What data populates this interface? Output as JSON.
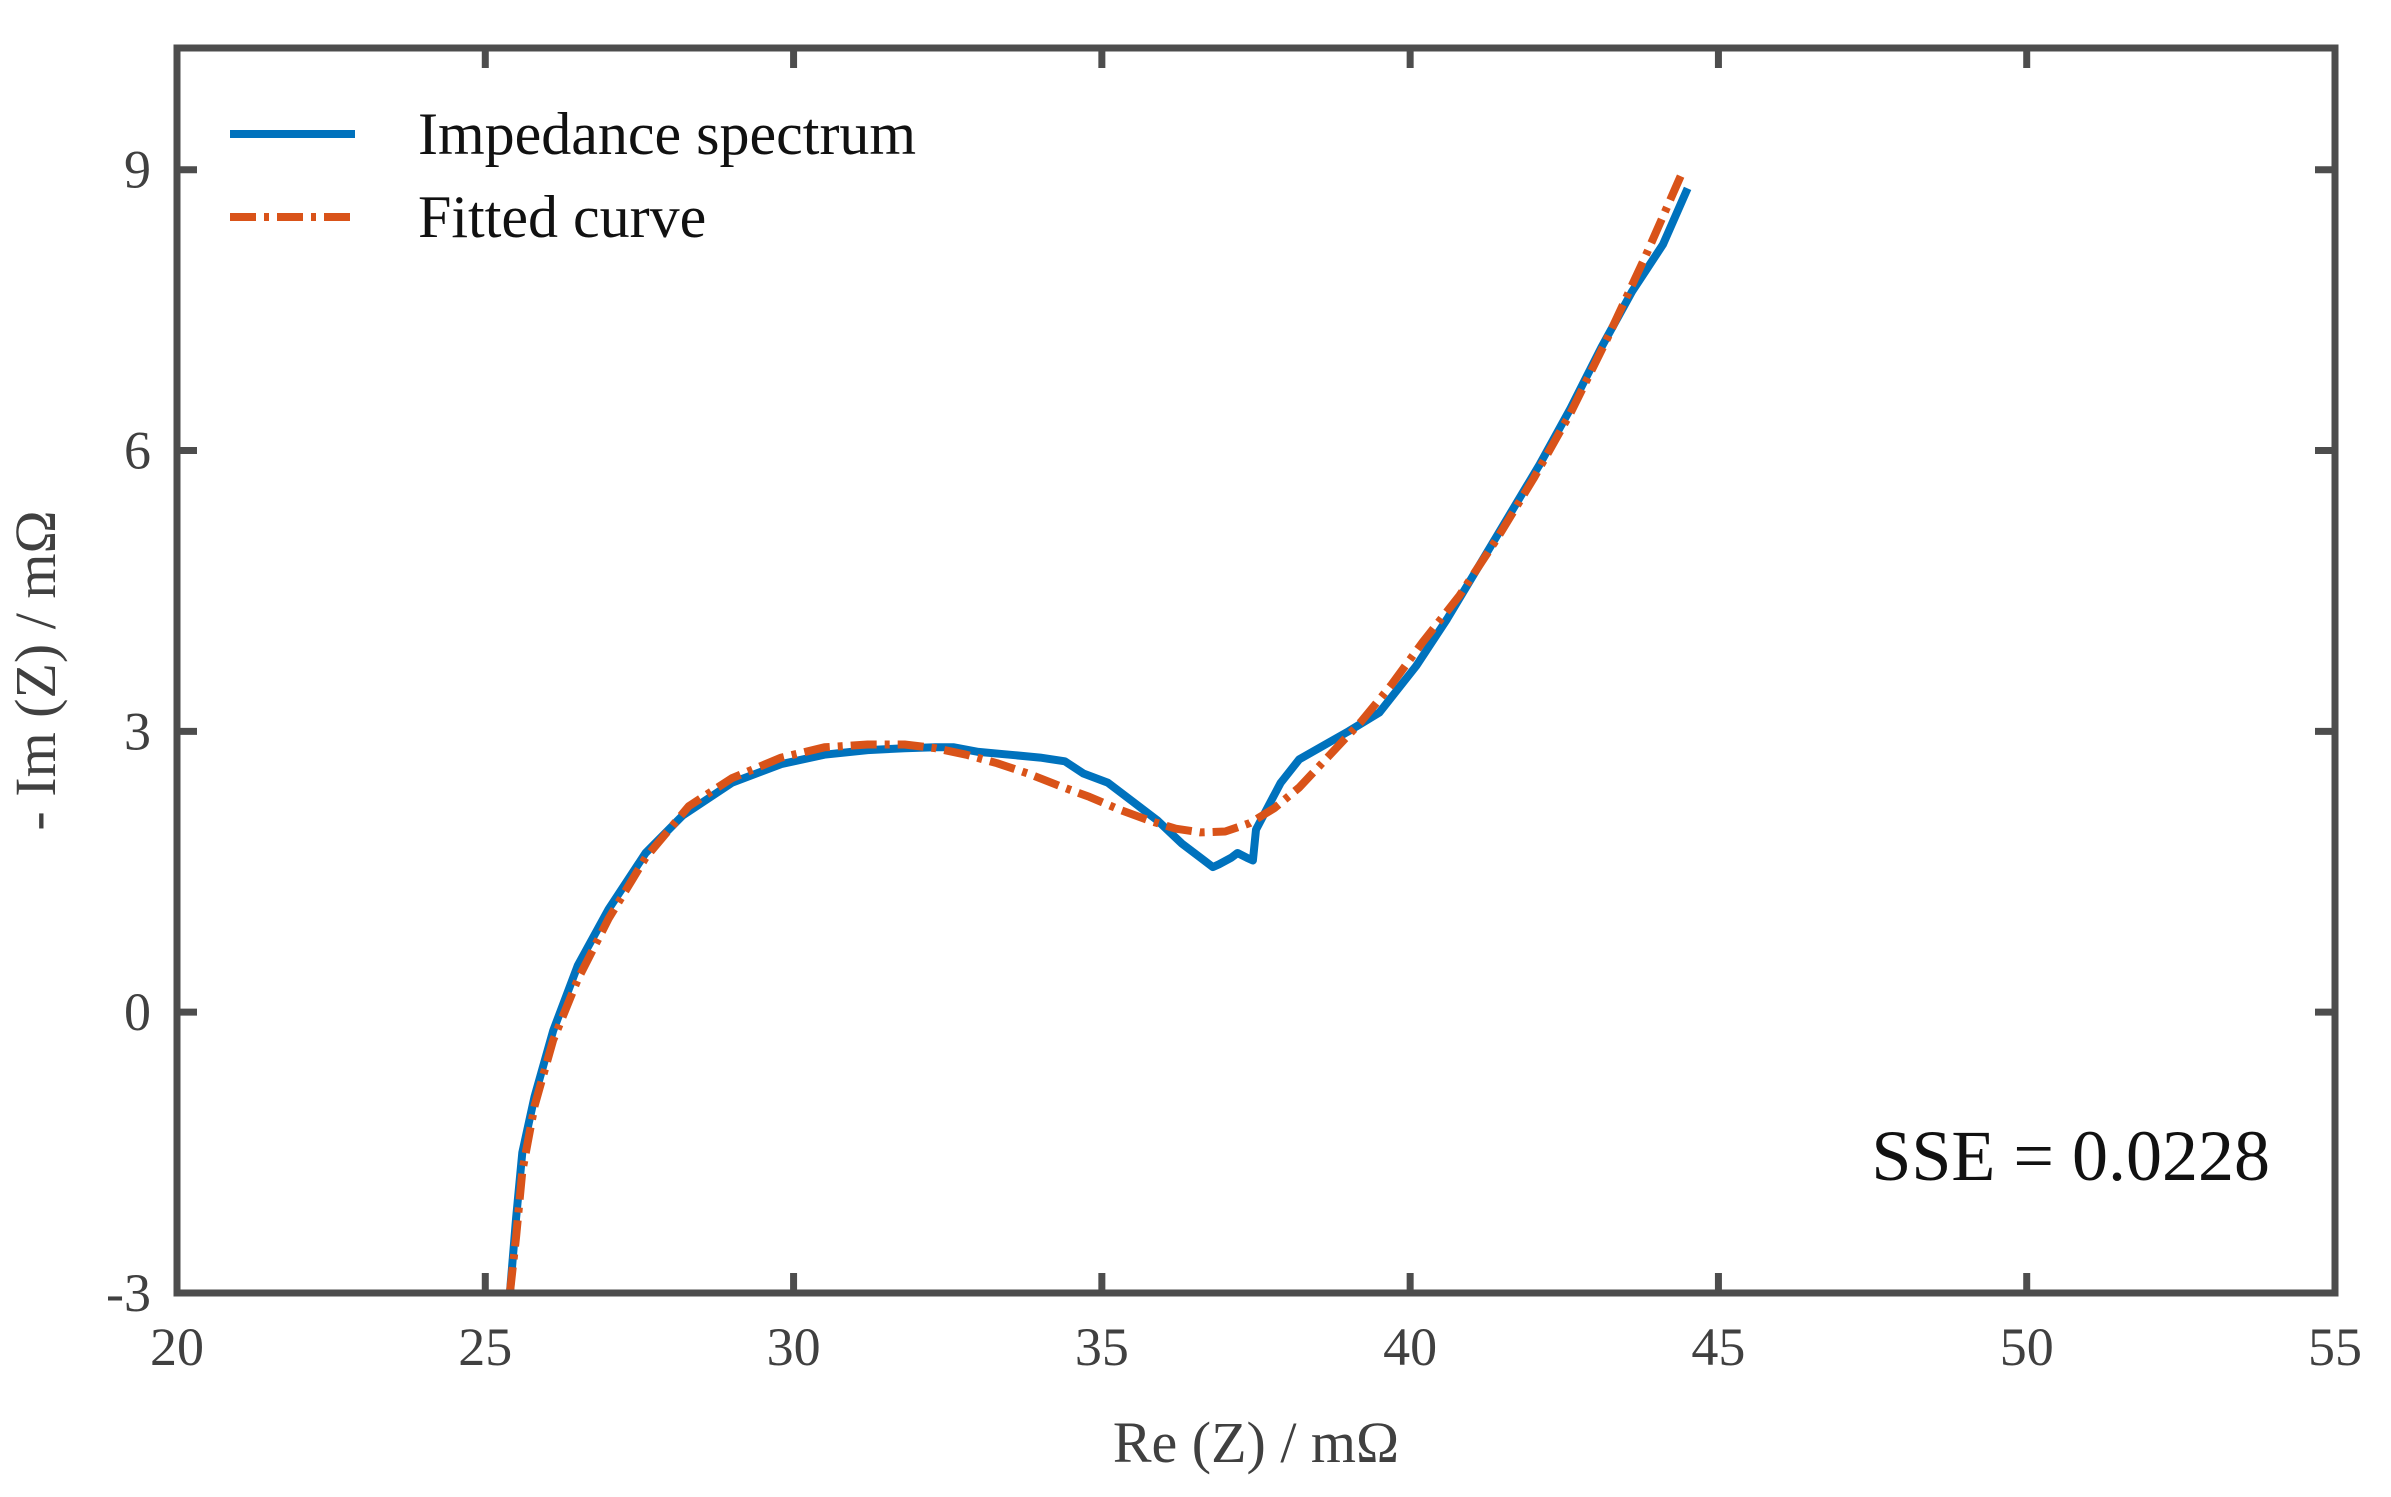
{
  "chart_data": {
    "type": "line",
    "title": "",
    "xlabel": "Re (Z) / mΩ",
    "ylabel": "- Im (Z) / mΩ",
    "xlim": [
      20,
      55
    ],
    "ylim": [
      -3,
      10.3
    ],
    "xticks": [
      20,
      25,
      30,
      35,
      40,
      45,
      50,
      55
    ],
    "yticks": [
      -3,
      0,
      3,
      6,
      9
    ],
    "xtick_labels": [
      "20",
      "25",
      "30",
      "35",
      "40",
      "45",
      "50",
      "55"
    ],
    "ytick_labels": [
      "-3",
      "0",
      "3",
      "6",
      "9"
    ],
    "grid": false,
    "legend_position": "top-left",
    "annotation": "SSE = 0.0228",
    "series": [
      {
        "name": "Impedance spectrum",
        "color": "#0072BD",
        "style": "solid",
        "x": [
          25.4,
          25.5,
          25.6,
          25.8,
          26.1,
          26.5,
          27.0,
          27.6,
          28.2,
          29.0,
          29.8,
          30.5,
          31.2,
          31.8,
          32.3,
          32.6,
          33.0,
          33.5,
          34.0,
          34.4,
          34.7,
          35.1,
          35.5,
          35.9,
          36.3,
          36.6,
          36.8,
          36.9,
          37.1,
          37.2,
          37.35,
          37.45,
          37.5,
          37.7,
          37.9,
          38.2,
          38.6,
          39.0,
          39.5,
          40.1,
          40.6,
          41.1,
          41.6,
          42.1,
          42.6,
          43.1,
          43.6,
          44.1,
          44.5
        ],
        "y": [
          -3.0,
          -2.2,
          -1.5,
          -0.9,
          -0.2,
          0.5,
          1.1,
          1.7,
          2.1,
          2.45,
          2.65,
          2.75,
          2.8,
          2.82,
          2.83,
          2.83,
          2.78,
          2.75,
          2.72,
          2.68,
          2.55,
          2.45,
          2.25,
          2.05,
          1.8,
          1.65,
          1.55,
          1.58,
          1.65,
          1.7,
          1.65,
          1.62,
          1.95,
          2.2,
          2.45,
          2.7,
          2.85,
          3.0,
          3.2,
          3.7,
          4.2,
          4.75,
          5.3,
          5.85,
          6.45,
          7.1,
          7.7,
          8.2,
          8.8
        ]
      },
      {
        "name": "Fitted curve",
        "color": "#D95319",
        "style": "dash-dot",
        "x": [
          25.4,
          25.5,
          25.6,
          25.8,
          26.1,
          26.5,
          27.0,
          27.6,
          28.3,
          29.0,
          29.8,
          30.5,
          31.2,
          31.8,
          32.3,
          32.8,
          33.3,
          33.8,
          34.3,
          34.8,
          35.3,
          35.8,
          36.2,
          36.6,
          37.0,
          37.4,
          37.8,
          38.2,
          38.7,
          39.2,
          39.7,
          40.2,
          40.8,
          41.4,
          42.0,
          42.6,
          43.2,
          43.8,
          44.4
        ],
        "y": [
          -3.0,
          -2.4,
          -1.7,
          -1.0,
          -0.3,
          0.35,
          1.0,
          1.65,
          2.2,
          2.5,
          2.72,
          2.83,
          2.86,
          2.86,
          2.82,
          2.75,
          2.66,
          2.55,
          2.42,
          2.3,
          2.16,
          2.04,
          1.96,
          1.92,
          1.93,
          2.02,
          2.18,
          2.4,
          2.75,
          3.1,
          3.5,
          3.95,
          4.45,
          5.05,
          5.7,
          6.4,
          7.2,
          8.05,
          8.95
        ]
      }
    ]
  }
}
